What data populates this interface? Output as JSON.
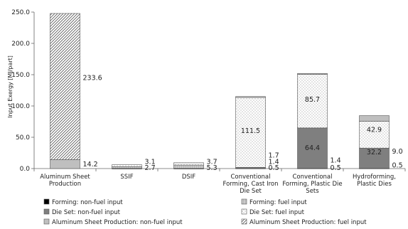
{
  "chart_data": {
    "type": "bar",
    "stacked": true,
    "title": "",
    "xlabel": "",
    "ylabel": "Input Exergy [MJ/part]",
    "ylim": [
      0,
      250
    ],
    "yticks": [
      "0.0",
      "50.0",
      "100.0",
      "150.0",
      "200.0",
      "250.0"
    ],
    "grid": false,
    "legend_position": "bottom",
    "categories": [
      [
        "Aluminum Sheet",
        "Production"
      ],
      [
        "SSIF"
      ],
      [
        "DSIF"
      ],
      [
        "Conventional",
        "Forming, Cast Iron",
        "Die Set"
      ],
      [
        "Conventional",
        "Forming, Plastic Die",
        "Sets"
      ],
      [
        "Hydroforming,",
        "Plastic Dies"
      ]
    ],
    "series": [
      {
        "name": "Forming: non-fuel input",
        "values": [
          0,
          0.3,
          0.3,
          0,
          0,
          0
        ],
        "color": "#000000",
        "pattern": "solid"
      },
      {
        "name": "Forming: fuel input",
        "values": [
          0,
          2.7,
          5.3,
          0.5,
          0.5,
          0.5
        ],
        "color": "#a6a6a6",
        "pattern": "grid"
      },
      {
        "name": "Die Set: non-fuel input",
        "values": [
          0,
          0,
          0,
          1.4,
          64.4,
          32.2
        ],
        "color": "#7f7f7f",
        "pattern": "solid"
      },
      {
        "name": "Die Set: fuel input",
        "values": [
          0,
          3.1,
          3.7,
          111.5,
          85.7,
          42.9
        ],
        "color": "#ffffff",
        "pattern": "dots"
      },
      {
        "name": "Aluminum Sheet Production: non-fuel input",
        "values": [
          14.2,
          0,
          0,
          1.7,
          1.4,
          9.0
        ],
        "color": "#bfbfbf",
        "pattern": "solid"
      },
      {
        "name": "Aluminum Sheet Production: fuel input",
        "values": [
          233.6,
          0,
          0,
          0,
          0,
          0
        ],
        "color": "#ffffff",
        "pattern": "diag"
      }
    ],
    "data_labels": [
      {
        "category": 0,
        "text": "233.6",
        "at": 145,
        "position": "right"
      },
      {
        "category": 0,
        "text": "14.2",
        "at": 7,
        "position": "right"
      },
      {
        "category": 1,
        "text": "3.1",
        "at": 11,
        "position": "right"
      },
      {
        "category": 1,
        "text": "2.7",
        "at": 1,
        "position": "right"
      },
      {
        "category": 2,
        "text": "3.7",
        "at": 11,
        "position": "right"
      },
      {
        "category": 2,
        "text": "5.3",
        "at": 1,
        "position": "right"
      },
      {
        "category": 3,
        "text": "111.5",
        "at": 60,
        "position": "inside"
      },
      {
        "category": 3,
        "text": "1.7",
        "at": 21,
        "position": "right"
      },
      {
        "category": 3,
        "text": "1.4",
        "at": 11,
        "position": "right"
      },
      {
        "category": 3,
        "text": "0.5",
        "at": 1,
        "position": "right"
      },
      {
        "category": 4,
        "text": "85.7",
        "at": 110,
        "position": "inside"
      },
      {
        "category": 4,
        "text": "64.4",
        "at": 33,
        "position": "inside"
      },
      {
        "category": 4,
        "text": "1.4",
        "at": 13,
        "position": "right"
      },
      {
        "category": 4,
        "text": "0.5",
        "at": 1,
        "position": "right"
      },
      {
        "category": 5,
        "text": "42.9",
        "at": 62,
        "position": "inside"
      },
      {
        "category": 5,
        "text": "32.2",
        "at": 26,
        "position": "inside"
      },
      {
        "category": 5,
        "text": "9.0",
        "at": 27,
        "position": "right"
      },
      {
        "category": 5,
        "text": "0.5",
        "at": 5,
        "position": "right"
      }
    ]
  }
}
